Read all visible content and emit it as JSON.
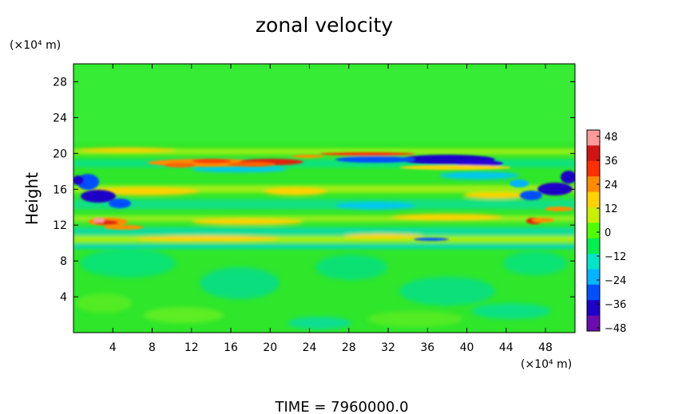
{
  "chart_data": {
    "type": "heatmap",
    "title": "zonal velocity",
    "ylabel": "Height",
    "xlabel": "",
    "x_units": "(×10⁴ m)",
    "y_units": "(×10⁴ m)",
    "xlim": [
      0,
      51
    ],
    "ylim": [
      0,
      30
    ],
    "x_ticks": [
      4,
      8,
      12,
      16,
      20,
      24,
      28,
      32,
      36,
      40,
      44,
      48
    ],
    "y_ticks": [
      4,
      8,
      12,
      16,
      20,
      24,
      28
    ],
    "colorbar": {
      "min": -48,
      "max": 48,
      "ticks": [
        48,
        36,
        24,
        12,
        0,
        -12,
        -24,
        -36,
        -48
      ],
      "tick_labels": [
        "48",
        "36",
        "24",
        "12",
        "0",
        "−12",
        "−24",
        "−36",
        "−48"
      ],
      "colors": [
        "#6a0dad",
        "#1e00c8",
        "#0050ff",
        "#00b4ff",
        "#00e6c8",
        "#00f050",
        "#50ff00",
        "#c8f000",
        "#ffd200",
        "#ff8c00",
        "#ff3000",
        "#d01414",
        "#ff9a9a"
      ]
    },
    "field_features": [
      {
        "x": 16,
        "y": 19.3,
        "value": 30
      },
      {
        "x": 22,
        "y": 19.2,
        "value": 38
      },
      {
        "x": 38,
        "y": 19.5,
        "value": -40
      },
      {
        "x": 2.5,
        "y": 12.5,
        "value": 48
      },
      {
        "x": 2.5,
        "y": 15.5,
        "value": -38
      },
      {
        "x": 50,
        "y": 16.5,
        "value": -34
      },
      {
        "x": 15,
        "y": 16.3,
        "value": 20
      },
      {
        "x": 36,
        "y": 18.2,
        "value": 18
      },
      {
        "x": 36,
        "y": 10.4,
        "value": -25
      },
      {
        "x": 47,
        "y": 12.5,
        "value": 36
      },
      {
        "x": 0.5,
        "y": 17,
        "value": -34
      }
    ],
    "grid": false,
    "legend": "none"
  },
  "footer": {
    "time_label": "TIME  =  7960000.0"
  }
}
